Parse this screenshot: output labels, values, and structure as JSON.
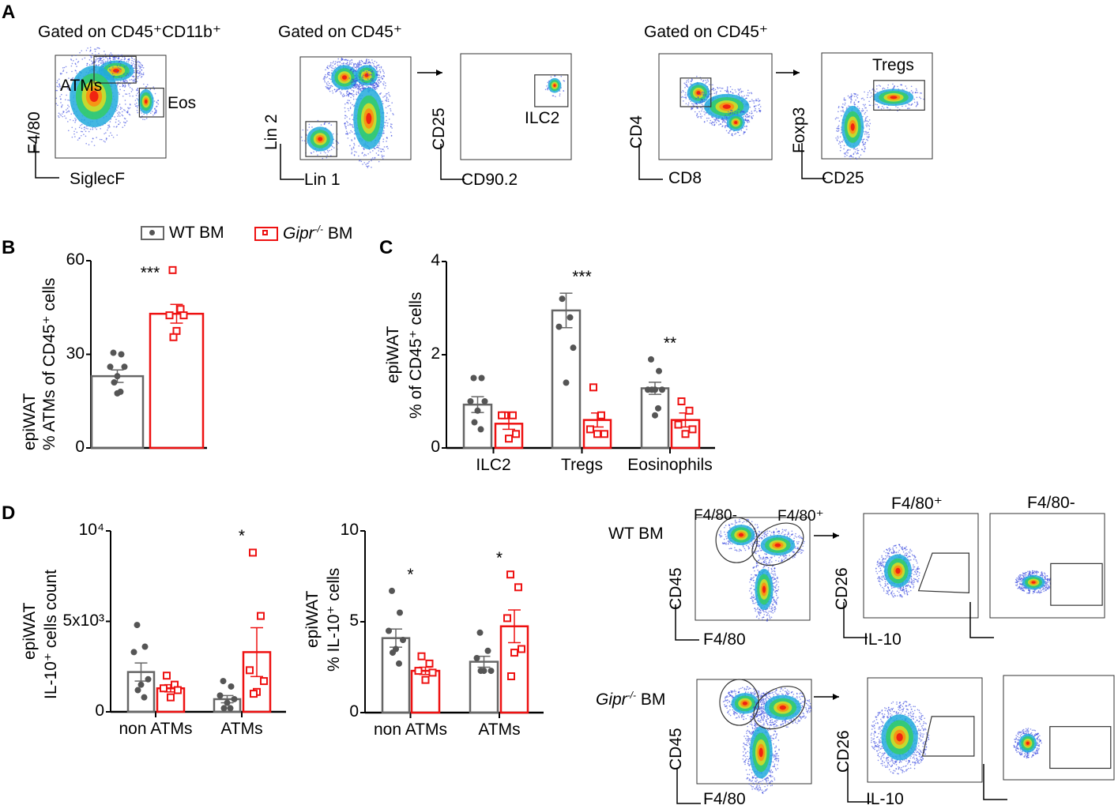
{
  "panels": {
    "A": "A",
    "B": "B",
    "C": "C",
    "D": "D"
  },
  "legend": {
    "wt": "WT BM",
    "ko_gene": "Gipr",
    "ko_sup": "-/-",
    "ko_suffix": " BM"
  },
  "colors": {
    "wt": "#666666",
    "ko": "#ee1111",
    "point_wt": "#555555"
  },
  "flow": {
    "gate1_title": "Gated on CD45⁺CD11b⁺",
    "gate2_title": "Gated on CD45⁺",
    "gate3_title": "Gated on CD45⁺",
    "p1": {
      "x": "SiglecF",
      "y": "F4/80",
      "g1": "ATMs",
      "g2": "Eos"
    },
    "p2": {
      "x": "Lin 1",
      "y": "Lin 2"
    },
    "p3": {
      "x": "CD90.2",
      "y": "CD25",
      "g1": "ILC2"
    },
    "p4": {
      "x": "CD8",
      "y": "CD4"
    },
    "p5": {
      "x": "CD25",
      "y": "Foxp3",
      "g1": "Tregs"
    },
    "d_wt_label": "WT BM",
    "d_ko_label_gene": "Gipr",
    "d_ko_label_sup": "-/-",
    "d_ko_label_suffix": " BM",
    "d_gate_neg": "F4/80-",
    "d_gate_pos": "F4/80⁺",
    "d_col_pos": "F4/80⁺",
    "d_col_neg": "F4/80-",
    "d_x1": "F4/80",
    "d_y1": "CD45",
    "d_x2": "IL-10",
    "d_y2": "CD26"
  },
  "chart_data": [
    {
      "id": "B",
      "type": "bar",
      "ylabel_1": "epiWAT",
      "ylabel_2": "% ATMs of CD45⁺ cells",
      "ylim": [
        0,
        60
      ],
      "yticks": [
        "0",
        "30",
        "60"
      ],
      "ytick_values": [
        0,
        30,
        60
      ],
      "categories": [
        ""
      ],
      "significance": [
        "***"
      ],
      "series": [
        {
          "name": "WT BM",
          "values": [
            23
          ],
          "sem": [
            2
          ],
          "points": [
            [
              30.5,
              30,
              26,
              26,
              23,
              21,
              18,
              17.5
            ]
          ]
        },
        {
          "name": "Gipr-/- BM",
          "values": [
            43
          ],
          "sem": [
            3
          ],
          "points": [
            [
              57,
              44.5,
              42.5,
              42.5,
              37.5,
              35.5
            ]
          ]
        }
      ]
    },
    {
      "id": "C",
      "type": "bar",
      "ylabel_1": "epiWAT",
      "ylabel_2": "% of CD45⁺ cells",
      "ylim": [
        0,
        4
      ],
      "yticks": [
        "0",
        "2",
        "4"
      ],
      "ytick_values": [
        0,
        2,
        4
      ],
      "categories": [
        "ILC2",
        "Tregs",
        "Eosinophils"
      ],
      "significance": [
        "",
        "***",
        "**"
      ],
      "series": [
        {
          "name": "WT BM",
          "values": [
            0.93,
            2.95,
            1.28
          ],
          "sem": [
            0.17,
            0.37,
            0.13
          ],
          "points": [
            [
              1.5,
              1.5,
              1.0,
              1.0,
              0.8,
              0.55,
              0.4
            ],
            [
              3.2,
              2.8,
              2.6,
              2.15,
              1.4
            ],
            [
              1.9,
              1.65,
              1.25,
              1.25,
              1.25,
              1.25,
              0.85,
              0.7
            ]
          ]
        },
        {
          "name": "Gipr-/- BM",
          "values": [
            0.52,
            0.6,
            0.6
          ],
          "sem": [
            0.12,
            0.15,
            0.15
          ],
          "points": [
            [
              0.7,
              0.7,
              0.7,
              0.3,
              0.2
            ],
            [
              1.3,
              0.7,
              0.4,
              0.3,
              0.3
            ],
            [
              1.0,
              0.8,
              0.5,
              0.4,
              0.3
            ]
          ]
        }
      ]
    },
    {
      "id": "D1",
      "type": "bar",
      "ylabel_1": "epiWAT",
      "ylabel_2": "IL-10⁺ cells count",
      "ylim": [
        0,
        10000
      ],
      "yticks": [
        "0",
        "5x10³",
        "10⁴"
      ],
      "ytick_values": [
        0,
        5000,
        10000
      ],
      "categories": [
        "non ATMs",
        "ATMs"
      ],
      "significance": [
        "",
        "*"
      ],
      "series": [
        {
          "name": "WT BM",
          "values": [
            2200,
            700
          ],
          "sem": [
            500,
            200
          ],
          "points": [
            [
              4800,
              3600,
              3300,
              1800,
              1500,
              1200,
              800
            ],
            [
              1700,
              1400,
              900,
              700,
              500,
              200,
              200
            ]
          ]
        },
        {
          "name": "Gipr-/- BM",
          "values": [
            1300,
            3300
          ],
          "sem": [
            200,
            1350
          ],
          "points": [
            [
              2000,
              1500,
              1300,
              1200,
              800
            ],
            [
              8800,
              5300,
              2300,
              1700,
              1100,
              1000
            ]
          ]
        }
      ]
    },
    {
      "id": "D2",
      "type": "bar",
      "ylabel_1": "epiWAT",
      "ylabel_2": "% IL-10⁺ cells",
      "ylim": [
        0,
        10
      ],
      "yticks": [
        "0",
        "5",
        "10"
      ],
      "ytick_values": [
        0,
        5,
        10
      ],
      "categories": [
        "non ATMs",
        "ATMs"
      ],
      "significance": [
        "*",
        "*"
      ],
      "series": [
        {
          "name": "WT BM",
          "values": [
            4.1,
            2.8
          ],
          "sem": [
            0.5,
            0.3
          ],
          "points": [
            [
              6.7,
              5.5,
              4.5,
              4.0,
              3.5,
              3.3,
              2.7
            ],
            [
              4.4,
              3.4,
              3.0,
              2.3,
              2.3,
              2.3
            ]
          ]
        },
        {
          "name": "Gipr-/- BM",
          "values": [
            2.3,
            4.75
          ],
          "sem": [
            0.2,
            0.9
          ],
          "points": [
            [
              3.1,
              2.7,
              2.3,
              2.2,
              1.8
            ],
            [
              7.6,
              6.9,
              5.2,
              3.5,
              3.3,
              2.0
            ]
          ]
        }
      ]
    }
  ]
}
